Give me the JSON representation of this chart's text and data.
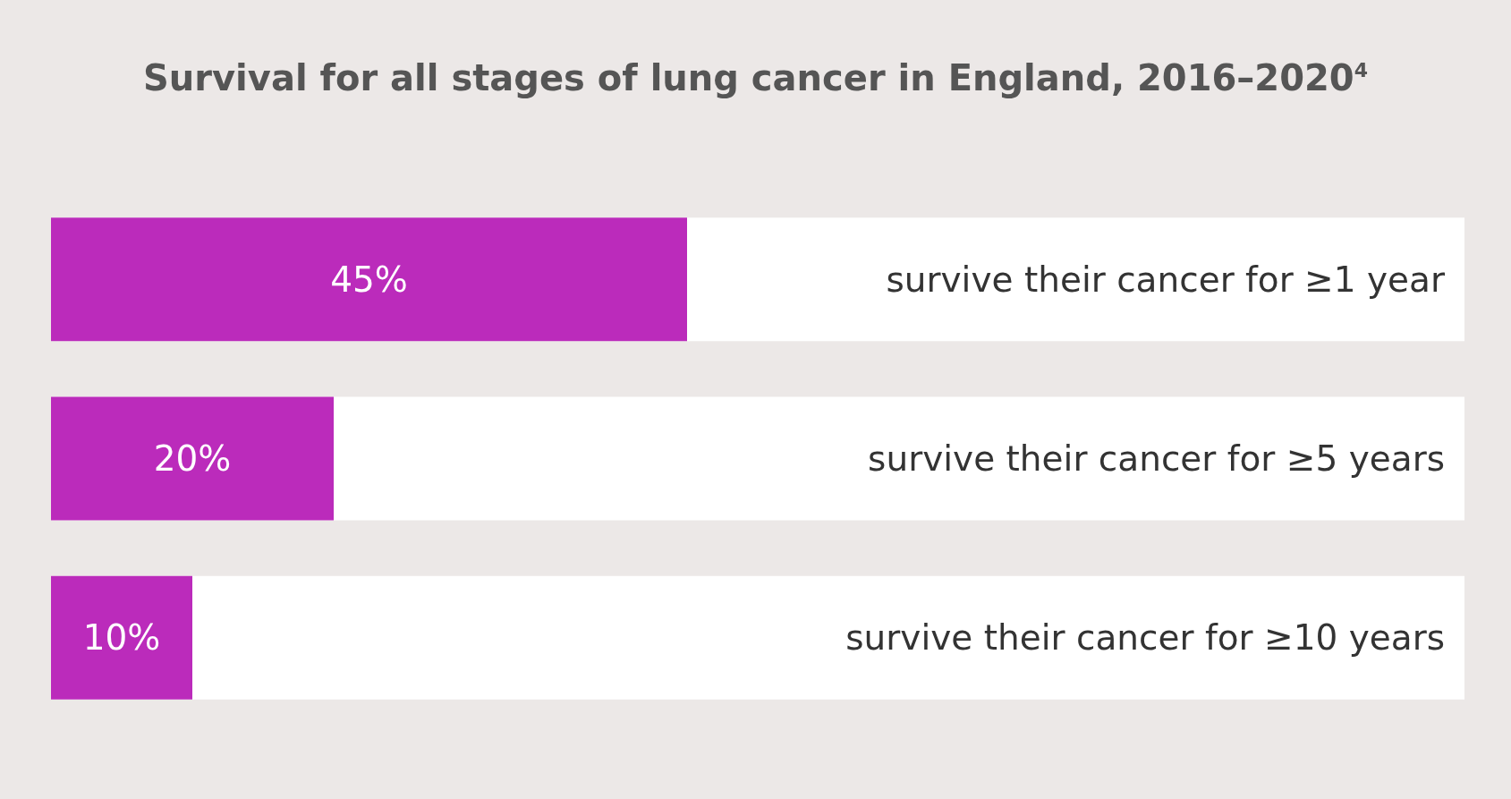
{
  "chart_data": {
    "type": "bar",
    "orientation": "horizontal",
    "title": "Survival for all stages of lung cancer in England, 2016–2020$^{4}$",
    "categories": [
      "survive their cancer for ≥1 year",
      "survive their cancer for ≥5 years",
      "survive their cancer for ≥10 years"
    ],
    "values": [
      45,
      20,
      10
    ],
    "value_labels": [
      "45%",
      "20%",
      "10%"
    ],
    "color": "#bb2bbb",
    "xlim": [
      0,
      100
    ],
    "tick_labels": "y"
  }
}
